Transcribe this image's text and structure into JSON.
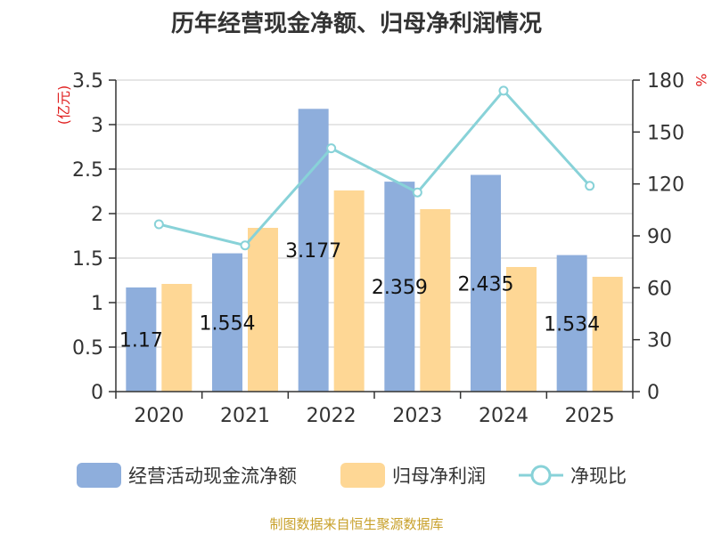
{
  "title": "历年经营现金净额、归母净利润情况",
  "source": "制图数据来自恒生聚源数据库",
  "colors": {
    "cash": "#8eaedc",
    "profit": "#fed795",
    "ratio": "#88d2d8",
    "unit": "#e02020"
  },
  "chart_data": {
    "type": "bar",
    "categories": [
      "2020",
      "2021",
      "2022",
      "2023",
      "2024",
      "2025"
    ],
    "series": [
      {
        "name": "经营活动现金流净额",
        "type": "bar",
        "axis": "left",
        "values": [
          1.17,
          1.554,
          3.177,
          2.359,
          2.435,
          1.534
        ],
        "labels": [
          "1.17",
          "1.554",
          "3.177",
          "2.359",
          "2.435",
          "1.534"
        ]
      },
      {
        "name": "归母净利润",
        "type": "bar",
        "axis": "left",
        "values": [
          1.21,
          1.84,
          2.26,
          2.05,
          1.4,
          1.29
        ]
      },
      {
        "name": "净现比",
        "type": "line",
        "axis": "right",
        "values": [
          96.7,
          84.5,
          140.6,
          115.1,
          173.9,
          118.9
        ]
      }
    ],
    "ylabel_left": "(亿元)",
    "ylabel_right": "%",
    "ylim_left": [
      0,
      3.5
    ],
    "ylim_right": [
      0,
      180
    ],
    "yticks_left": [
      "0",
      "0.5",
      "1",
      "1.5",
      "2",
      "2.5",
      "3",
      "3.5"
    ],
    "yticks_right": [
      "0",
      "30",
      "60",
      "90",
      "120",
      "150",
      "180"
    ],
    "grid": true,
    "legend": "bottom"
  }
}
